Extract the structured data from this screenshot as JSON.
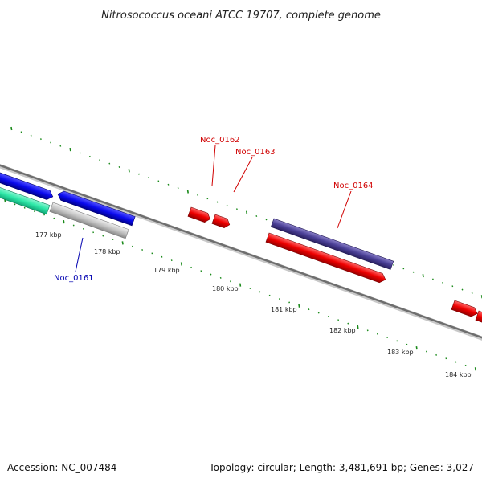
{
  "title": "Nitrosococcus oceani ATCC 19707, complete genome",
  "accession": "Accession: NC_007484",
  "summary": "Topology: circular; Length: 3,481,691 bp; Genes: 3,027",
  "kbp_labels": [
    "177 kbp",
    "178 kbp",
    "179 kbp",
    "180 kbp",
    "181 kbp",
    "182 kbp",
    "183 kbp",
    "184 kbp"
  ],
  "gene_labels": {
    "noc_0161": "Noc_0161",
    "noc_0162": "Noc_0162",
    "noc_0163": "Noc_0163",
    "noc_0164": "Noc_0164"
  },
  "colors": {
    "backbone": "#808080",
    "tick": "#1a8a1a",
    "blue_gene": "#0a0aee",
    "teal_gene": "#2ee8a8",
    "gray_gene": "#c4c4c4",
    "red_gene": "#ee0000",
    "purple_gene": "#4a3f96",
    "label_red": "#d00000",
    "label_blue": "#0000b0"
  }
}
